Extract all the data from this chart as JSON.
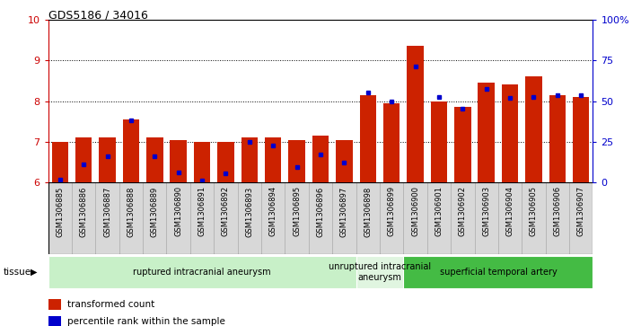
{
  "title": "GDS5186 / 34016",
  "samples": [
    "GSM1306885",
    "GSM1306886",
    "GSM1306887",
    "GSM1306888",
    "GSM1306889",
    "GSM1306890",
    "GSM1306891",
    "GSM1306892",
    "GSM1306893",
    "GSM1306894",
    "GSM1306895",
    "GSM1306896",
    "GSM1306897",
    "GSM1306898",
    "GSM1306899",
    "GSM1306900",
    "GSM1306901",
    "GSM1306902",
    "GSM1306903",
    "GSM1306904",
    "GSM1306905",
    "GSM1306906",
    "GSM1306907"
  ],
  "red_values": [
    7.0,
    7.1,
    7.1,
    7.55,
    7.1,
    7.05,
    7.0,
    7.0,
    7.1,
    7.1,
    7.05,
    7.15,
    7.05,
    8.15,
    7.95,
    9.35,
    8.0,
    7.85,
    8.45,
    8.4,
    8.6,
    8.15,
    8.1
  ],
  "blue_values": [
    6.07,
    6.45,
    6.65,
    7.53,
    6.65,
    6.25,
    6.05,
    6.22,
    7.0,
    6.9,
    6.38,
    6.7,
    6.5,
    8.2,
    8.0,
    8.85,
    8.1,
    7.82,
    8.3,
    8.08,
    8.1,
    8.15,
    8.15
  ],
  "group_configs": [
    {
      "label": "ruptured intracranial aneurysm",
      "start": 0,
      "end": 12,
      "color": "#c8f0c8"
    },
    {
      "label": "unruptured intracranial\naneurysm",
      "start": 13,
      "end": 14,
      "color": "#e0f5e0"
    },
    {
      "label": "superficial temporal artery",
      "start": 15,
      "end": 22,
      "color": "#44bb44"
    }
  ],
  "ylim_left": [
    6,
    10
  ],
  "ylim_right": [
    0,
    100
  ],
  "yticks_left": [
    6,
    7,
    8,
    9,
    10
  ],
  "yticks_right": [
    0,
    25,
    50,
    75,
    100
  ],
  "ytick_labels_right": [
    "0",
    "25",
    "50",
    "75",
    "100%"
  ],
  "left_color": "#cc0000",
  "right_color": "#0000cc",
  "bar_color": "#cc2200",
  "dot_color": "#0000cc",
  "grid_ticks": [
    7,
    8,
    9
  ],
  "tick_bg_color": "#d8d8d8",
  "tick_line_color": "#aaaaaa"
}
